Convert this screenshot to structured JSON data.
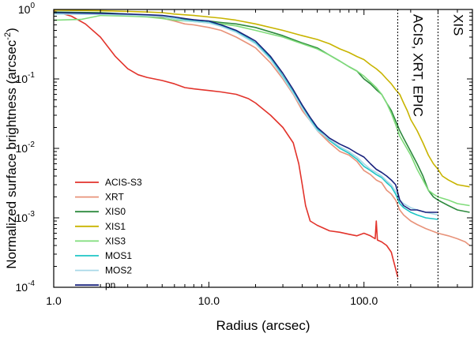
{
  "chart_data": {
    "type": "line",
    "xscale": "log",
    "yscale": "log",
    "xlim": [
      1.0,
      500
    ],
    "ylim": [
      0.0001,
      1.0
    ],
    "xlabel": "Radius (arcsec)",
    "ylabel": "Normalized surface brightness (arcsec",
    "ylabel_sup": "-2",
    "ylabel_end": ")",
    "x_ticks": [
      {
        "value": 1,
        "label": "1.0"
      },
      {
        "value": 10,
        "label": "10.0"
      },
      {
        "value": 100,
        "label": "100.0"
      }
    ],
    "y_ticks": [
      {
        "value": 1,
        "base": "10",
        "exp": "0"
      },
      {
        "value": 0.1,
        "base": "10",
        "exp": "-1"
      },
      {
        "value": 0.01,
        "base": "10",
        "exp": "-2"
      },
      {
        "value": 0.001,
        "base": "10",
        "exp": "-3"
      },
      {
        "value": 0.0001,
        "base": "10",
        "exp": "-4"
      }
    ],
    "vlines": [
      {
        "x": 165,
        "label": "ACIS, XRT, EPIC"
      },
      {
        "x": 300,
        "label": "XIS"
      }
    ],
    "series": [
      {
        "name": "ACIS-S3",
        "color": "#e2332b",
        "points": [
          [
            1,
            0.95
          ],
          [
            1.3,
            0.8
          ],
          [
            1.6,
            0.62
          ],
          [
            2,
            0.4
          ],
          [
            2.5,
            0.21
          ],
          [
            3,
            0.14
          ],
          [
            3.5,
            0.115
          ],
          [
            4,
            0.105
          ],
          [
            5,
            0.095
          ],
          [
            6,
            0.085
          ],
          [
            7,
            0.075
          ],
          [
            8,
            0.072
          ],
          [
            10,
            0.068
          ],
          [
            12,
            0.065
          ],
          [
            15,
            0.06
          ],
          [
            18,
            0.052
          ],
          [
            20,
            0.045
          ],
          [
            25,
            0.03
          ],
          [
            30,
            0.02
          ],
          [
            35,
            0.012
          ],
          [
            38,
            0.006
          ],
          [
            40,
            0.003
          ],
          [
            42,
            0.0015
          ],
          [
            45,
            0.0009
          ],
          [
            50,
            0.00078
          ],
          [
            60,
            0.00065
          ],
          [
            70,
            0.00062
          ],
          [
            80,
            0.00058
          ],
          [
            90,
            0.00055
          ],
          [
            100,
            0.0006
          ],
          [
            110,
            0.00055
          ],
          [
            118,
            0.0005
          ],
          [
            120,
            0.0009
          ],
          [
            122,
            0.00048
          ],
          [
            130,
            0.00045
          ],
          [
            140,
            0.0004
          ],
          [
            150,
            0.00032
          ],
          [
            165,
            0.00014
          ]
        ]
      },
      {
        "name": "XRT",
        "color": "#e8937a",
        "points": [
          [
            1,
            0.9
          ],
          [
            2,
            0.88
          ],
          [
            3,
            0.85
          ],
          [
            4,
            0.8
          ],
          [
            5,
            0.75
          ],
          [
            6,
            0.68
          ],
          [
            7,
            0.62
          ],
          [
            8,
            0.6
          ],
          [
            10,
            0.55
          ],
          [
            12,
            0.5
          ],
          [
            15,
            0.4
          ],
          [
            18,
            0.32
          ],
          [
            20,
            0.28
          ],
          [
            25,
            0.17
          ],
          [
            30,
            0.1
          ],
          [
            35,
            0.06
          ],
          [
            40,
            0.035
          ],
          [
            45,
            0.025
          ],
          [
            50,
            0.018
          ],
          [
            60,
            0.012
          ],
          [
            70,
            0.009
          ],
          [
            80,
            0.008
          ],
          [
            90,
            0.0065
          ],
          [
            100,
            0.0048
          ],
          [
            110,
            0.0042
          ],
          [
            120,
            0.0035
          ],
          [
            130,
            0.0032
          ],
          [
            140,
            0.0025
          ],
          [
            150,
            0.0022
          ],
          [
            160,
            0.0018
          ],
          [
            170,
            0.0013
          ],
          [
            180,
            0.0011
          ],
          [
            200,
            0.0009
          ],
          [
            220,
            0.0008
          ],
          [
            250,
            0.0007
          ],
          [
            300,
            0.0006
          ],
          [
            350,
            0.00055
          ],
          [
            400,
            0.0005
          ],
          [
            450,
            0.00045
          ],
          [
            480,
            0.0004
          ]
        ]
      },
      {
        "name": "XIS0",
        "color": "#2e8a3e",
        "points": [
          [
            1,
            0.92
          ],
          [
            2,
            0.9
          ],
          [
            3,
            0.86
          ],
          [
            4,
            0.82
          ],
          [
            5,
            0.78
          ],
          [
            6,
            0.74
          ],
          [
            8,
            0.7
          ],
          [
            10,
            0.68
          ],
          [
            12,
            0.65
          ],
          [
            15,
            0.62
          ],
          [
            20,
            0.55
          ],
          [
            30,
            0.42
          ],
          [
            40,
            0.33
          ],
          [
            50,
            0.28
          ],
          [
            60,
            0.22
          ],
          [
            70,
            0.18
          ],
          [
            80,
            0.15
          ],
          [
            90,
            0.13
          ],
          [
            100,
            0.1
          ],
          [
            110,
            0.085
          ],
          [
            120,
            0.07
          ],
          [
            130,
            0.06
          ],
          [
            140,
            0.045
          ],
          [
            150,
            0.035
          ],
          [
            160,
            0.025
          ],
          [
            170,
            0.018
          ],
          [
            180,
            0.014
          ],
          [
            200,
            0.009
          ],
          [
            220,
            0.006
          ],
          [
            240,
            0.004
          ],
          [
            260,
            0.0025
          ],
          [
            280,
            0.002
          ],
          [
            300,
            0.0018
          ],
          [
            350,
            0.0015
          ],
          [
            400,
            0.0013
          ],
          [
            480,
            0.0012
          ]
        ]
      },
      {
        "name": "XIS1",
        "color": "#c8b400",
        "points": [
          [
            1,
            0.98
          ],
          [
            2,
            0.96
          ],
          [
            3,
            0.94
          ],
          [
            4,
            0.92
          ],
          [
            5,
            0.9
          ],
          [
            6,
            0.86
          ],
          [
            8,
            0.82
          ],
          [
            10,
            0.78
          ],
          [
            12,
            0.75
          ],
          [
            15,
            0.7
          ],
          [
            20,
            0.62
          ],
          [
            30,
            0.5
          ],
          [
            40,
            0.42
          ],
          [
            50,
            0.37
          ],
          [
            60,
            0.32
          ],
          [
            70,
            0.27
          ],
          [
            80,
            0.24
          ],
          [
            90,
            0.21
          ],
          [
            100,
            0.19
          ],
          [
            110,
            0.16
          ],
          [
            120,
            0.14
          ],
          [
            130,
            0.12
          ],
          [
            140,
            0.1
          ],
          [
            150,
            0.085
          ],
          [
            160,
            0.07
          ],
          [
            170,
            0.06
          ],
          [
            180,
            0.045
          ],
          [
            190,
            0.035
          ],
          [
            200,
            0.026
          ],
          [
            220,
            0.018
          ],
          [
            240,
            0.012
          ],
          [
            260,
            0.008
          ],
          [
            280,
            0.006
          ],
          [
            300,
            0.005
          ],
          [
            320,
            0.004
          ],
          [
            350,
            0.0035
          ],
          [
            400,
            0.003
          ],
          [
            480,
            0.0028
          ]
        ]
      },
      {
        "name": "XIS3",
        "color": "#7fdc7a",
        "points": [
          [
            1,
            0.7
          ],
          [
            1.5,
            0.72
          ],
          [
            2,
            0.82
          ],
          [
            3,
            0.8
          ],
          [
            4,
            0.78
          ],
          [
            5,
            0.74
          ],
          [
            6,
            0.7
          ],
          [
            8,
            0.67
          ],
          [
            10,
            0.64
          ],
          [
            12,
            0.62
          ],
          [
            15,
            0.58
          ],
          [
            20,
            0.5
          ],
          [
            30,
            0.4
          ],
          [
            40,
            0.32
          ],
          [
            50,
            0.27
          ],
          [
            60,
            0.22
          ],
          [
            70,
            0.18
          ],
          [
            80,
            0.15
          ],
          [
            90,
            0.13
          ],
          [
            100,
            0.11
          ],
          [
            110,
            0.09
          ],
          [
            120,
            0.075
          ],
          [
            130,
            0.06
          ],
          [
            140,
            0.045
          ],
          [
            150,
            0.032
          ],
          [
            160,
            0.022
          ],
          [
            170,
            0.015
          ],
          [
            180,
            0.012
          ],
          [
            200,
            0.008
          ],
          [
            220,
            0.005
          ],
          [
            240,
            0.0035
          ],
          [
            260,
            0.0025
          ],
          [
            280,
            0.0022
          ],
          [
            300,
            0.002
          ],
          [
            350,
            0.0018
          ],
          [
            400,
            0.0016
          ],
          [
            480,
            0.0015
          ]
        ]
      },
      {
        "name": "MOS1",
        "color": "#1ec6c6",
        "points": [
          [
            1,
            0.88
          ],
          [
            2,
            0.86
          ],
          [
            3,
            0.84
          ],
          [
            4,
            0.82
          ],
          [
            5,
            0.8
          ],
          [
            6,
            0.75
          ],
          [
            7,
            0.7
          ],
          [
            8,
            0.68
          ],
          [
            10,
            0.65
          ],
          [
            12,
            0.58
          ],
          [
            15,
            0.48
          ],
          [
            18,
            0.38
          ],
          [
            20,
            0.33
          ],
          [
            25,
            0.2
          ],
          [
            30,
            0.11
          ],
          [
            35,
            0.065
          ],
          [
            40,
            0.04
          ],
          [
            45,
            0.026
          ],
          [
            50,
            0.019
          ],
          [
            60,
            0.013
          ],
          [
            70,
            0.01
          ],
          [
            80,
            0.0085
          ],
          [
            90,
            0.007
          ],
          [
            100,
            0.0055
          ],
          [
            110,
            0.0048
          ],
          [
            120,
            0.0042
          ],
          [
            130,
            0.0038
          ],
          [
            140,
            0.0032
          ],
          [
            150,
            0.0028
          ],
          [
            160,
            0.0022
          ],
          [
            170,
            0.0016
          ],
          [
            180,
            0.0014
          ],
          [
            200,
            0.0012
          ],
          [
            220,
            0.0011
          ],
          [
            250,
            0.001
          ],
          [
            300,
            0.00095
          ]
        ]
      },
      {
        "name": "MOS2",
        "color": "#a8d8e8",
        "points": [
          [
            1,
            0.86
          ],
          [
            2,
            0.85
          ],
          [
            3,
            0.83
          ],
          [
            4,
            0.81
          ],
          [
            5,
            0.79
          ],
          [
            6,
            0.74
          ],
          [
            7,
            0.69
          ],
          [
            8,
            0.67
          ],
          [
            10,
            0.64
          ],
          [
            12,
            0.57
          ],
          [
            15,
            0.47
          ],
          [
            18,
            0.37
          ],
          [
            20,
            0.32
          ],
          [
            25,
            0.19
          ],
          [
            30,
            0.105
          ],
          [
            35,
            0.062
          ],
          [
            40,
            0.038
          ],
          [
            45,
            0.025
          ],
          [
            50,
            0.018
          ],
          [
            60,
            0.0135
          ],
          [
            70,
            0.0105
          ],
          [
            80,
            0.009
          ],
          [
            90,
            0.0075
          ],
          [
            100,
            0.006
          ],
          [
            110,
            0.005
          ],
          [
            120,
            0.0045
          ],
          [
            130,
            0.004
          ],
          [
            140,
            0.0034
          ],
          [
            150,
            0.003
          ],
          [
            160,
            0.0024
          ],
          [
            170,
            0.0018
          ],
          [
            180,
            0.0016
          ],
          [
            200,
            0.0014
          ],
          [
            220,
            0.0013
          ],
          [
            250,
            0.0012
          ],
          [
            300,
            0.0011
          ]
        ]
      },
      {
        "name": "pn",
        "color": "#1a237e",
        "points": [
          [
            1,
            0.9
          ],
          [
            2,
            0.88
          ],
          [
            3,
            0.86
          ],
          [
            4,
            0.84
          ],
          [
            5,
            0.82
          ],
          [
            6,
            0.78
          ],
          [
            7,
            0.74
          ],
          [
            8,
            0.71
          ],
          [
            10,
            0.68
          ],
          [
            12,
            0.6
          ],
          [
            15,
            0.5
          ],
          [
            18,
            0.4
          ],
          [
            20,
            0.35
          ],
          [
            25,
            0.21
          ],
          [
            30,
            0.12
          ],
          [
            35,
            0.07
          ],
          [
            40,
            0.042
          ],
          [
            45,
            0.028
          ],
          [
            50,
            0.02
          ],
          [
            60,
            0.014
          ],
          [
            70,
            0.0115
          ],
          [
            80,
            0.01
          ],
          [
            90,
            0.0085
          ],
          [
            100,
            0.0075
          ],
          [
            110,
            0.006
          ],
          [
            120,
            0.005
          ],
          [
            130,
            0.0045
          ],
          [
            140,
            0.004
          ],
          [
            150,
            0.0035
          ],
          [
            160,
            0.003
          ],
          [
            170,
            0.0018
          ],
          [
            180,
            0.0015
          ],
          [
            200,
            0.0013
          ],
          [
            220,
            0.0013
          ],
          [
            250,
            0.0012
          ],
          [
            300,
            0.0012
          ]
        ]
      }
    ],
    "legend_position": "bottom-left"
  }
}
